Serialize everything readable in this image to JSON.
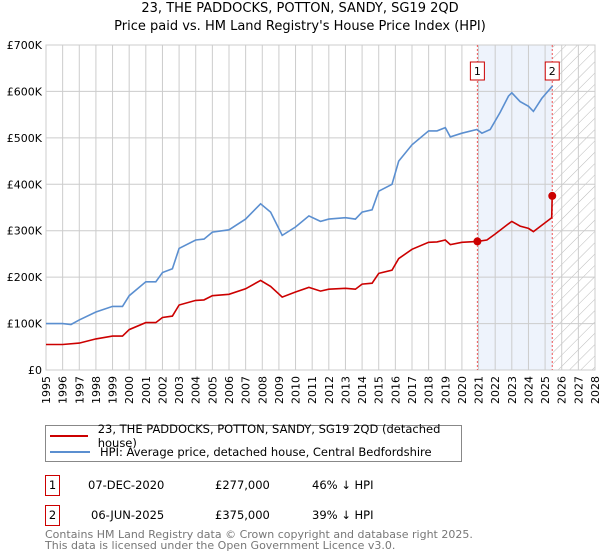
{
  "title": "23, THE PADDOCKS, POTTON, SANDY, SG19 2QD",
  "subtitle": "Price paid vs. HM Land Registry's House Price Index (HPI)",
  "chart_data": {
    "type": "line",
    "xlim": [
      1995,
      2028
    ],
    "ylim": [
      0,
      700000
    ],
    "x_ticks": [
      "1995",
      "1996",
      "1997",
      "1998",
      "1999",
      "2000",
      "2001",
      "2002",
      "2003",
      "2004",
      "2005",
      "2006",
      "2007",
      "2008",
      "2009",
      "2010",
      "2011",
      "2012",
      "2013",
      "2014",
      "2015",
      "2016",
      "2017",
      "2018",
      "2019",
      "2020",
      "2021",
      "2022",
      "2023",
      "2024",
      "2025",
      "2026",
      "2027",
      "2028"
    ],
    "y_ticks": [
      {
        "v": 0,
        "label": "£0"
      },
      {
        "v": 100000,
        "label": "£100K"
      },
      {
        "v": 200000,
        "label": "£200K"
      },
      {
        "v": 300000,
        "label": "£300K"
      },
      {
        "v": 400000,
        "label": "£400K"
      },
      {
        "v": 500000,
        "label": "£500K"
      },
      {
        "v": 600000,
        "label": "£600K"
      },
      {
        "v": 700000,
        "label": "£700K"
      }
    ],
    "grid": true,
    "series": [
      {
        "name": "HPI",
        "color": "#5b8fd0",
        "x": [
          1995,
          1996,
          1996.5,
          1997,
          1998,
          1999,
          1999.6,
          2000,
          2001,
          2001.6,
          2002,
          2002.6,
          2003,
          2004,
          2004.5,
          2005,
          2006,
          2007,
          2007.9,
          2008.5,
          2009.2,
          2010,
          2010.8,
          2011.5,
          2012,
          2013,
          2013.6,
          2014,
          2014.6,
          2015,
          2015.8,
          2016.2,
          2017,
          2018,
          2018.5,
          2019,
          2019.3,
          2020,
          2020.9,
          2021.2,
          2021.7,
          2022.3,
          2022.8,
          2023.0,
          2023.5,
          2024,
          2024.3,
          2024.8,
          2025.45
        ],
        "values": [
          100000,
          100000,
          98000,
          108000,
          125000,
          137000,
          137000,
          160000,
          190000,
          190000,
          210000,
          218000,
          262000,
          280000,
          282000,
          297000,
          302000,
          325000,
          358000,
          340000,
          290000,
          308000,
          332000,
          320000,
          325000,
          328000,
          325000,
          340000,
          345000,
          385000,
          400000,
          450000,
          485000,
          515000,
          515000,
          522000,
          502000,
          510000,
          518000,
          510000,
          518000,
          555000,
          590000,
          597000,
          578000,
          568000,
          557000,
          585000,
          612000
        ]
      },
      {
        "name": "Price paid",
        "color": "#cc0000",
        "x": [
          1995,
          1996,
          1997,
          1998,
          1999,
          1999.6,
          2000,
          2001,
          2001.6,
          2002,
          2002.6,
          2003,
          2004,
          2004.5,
          2005,
          2006,
          2007,
          2007.9,
          2008.5,
          2009.2,
          2010,
          2010.8,
          2011.5,
          2012,
          2013,
          2013.6,
          2014,
          2014.6,
          2015,
          2015.8,
          2016.2,
          2017,
          2018,
          2018.5,
          2019,
          2019.3,
          2020,
          2020.93,
          2021.5,
          2022,
          2022.8,
          2023.0,
          2023.5,
          2024,
          2024.3,
          2025.4,
          2025.43
        ],
        "values": [
          55000,
          55000,
          58000,
          67000,
          73000,
          73000,
          87000,
          102000,
          102000,
          113000,
          116000,
          140000,
          150000,
          151000,
          160000,
          163000,
          175000,
          193000,
          180000,
          157000,
          168000,
          178000,
          170000,
          174000,
          176000,
          174000,
          185000,
          187000,
          208000,
          215000,
          240000,
          260000,
          275000,
          276000,
          280000,
          270000,
          275000,
          277000,
          280000,
          293000,
          315000,
          320000,
          310000,
          305000,
          298000,
          328000,
          375000
        ]
      }
    ],
    "sales": [
      {
        "id": "1",
        "x": 2020.93,
        "value": 277000
      },
      {
        "id": "2",
        "x": 2025.43,
        "value": 375000
      }
    ],
    "shaded_range": [
      2020.93,
      2025.43
    ],
    "hatched_from": 2025.43
  },
  "legend": [
    {
      "label": "23, THE PADDOCKS, POTTON, SANDY, SG19 2QD (detached house)",
      "color": "#cc0000"
    },
    {
      "label": "HPI: Average price, detached house, Central Bedfordshire",
      "color": "#5b8fd0"
    }
  ],
  "transactions": [
    {
      "id": "1",
      "date": "07-DEC-2020",
      "price": "£277,000",
      "delta": "46% ↓ HPI"
    },
    {
      "id": "2",
      "date": "06-JUN-2025",
      "price": "£375,000",
      "delta": "39% ↓ HPI"
    }
  ],
  "footer": {
    "line1": "Contains HM Land Registry data © Crown copyright and database right 2025.",
    "line2": "This data is licensed under the Open Government Licence v3.0."
  }
}
